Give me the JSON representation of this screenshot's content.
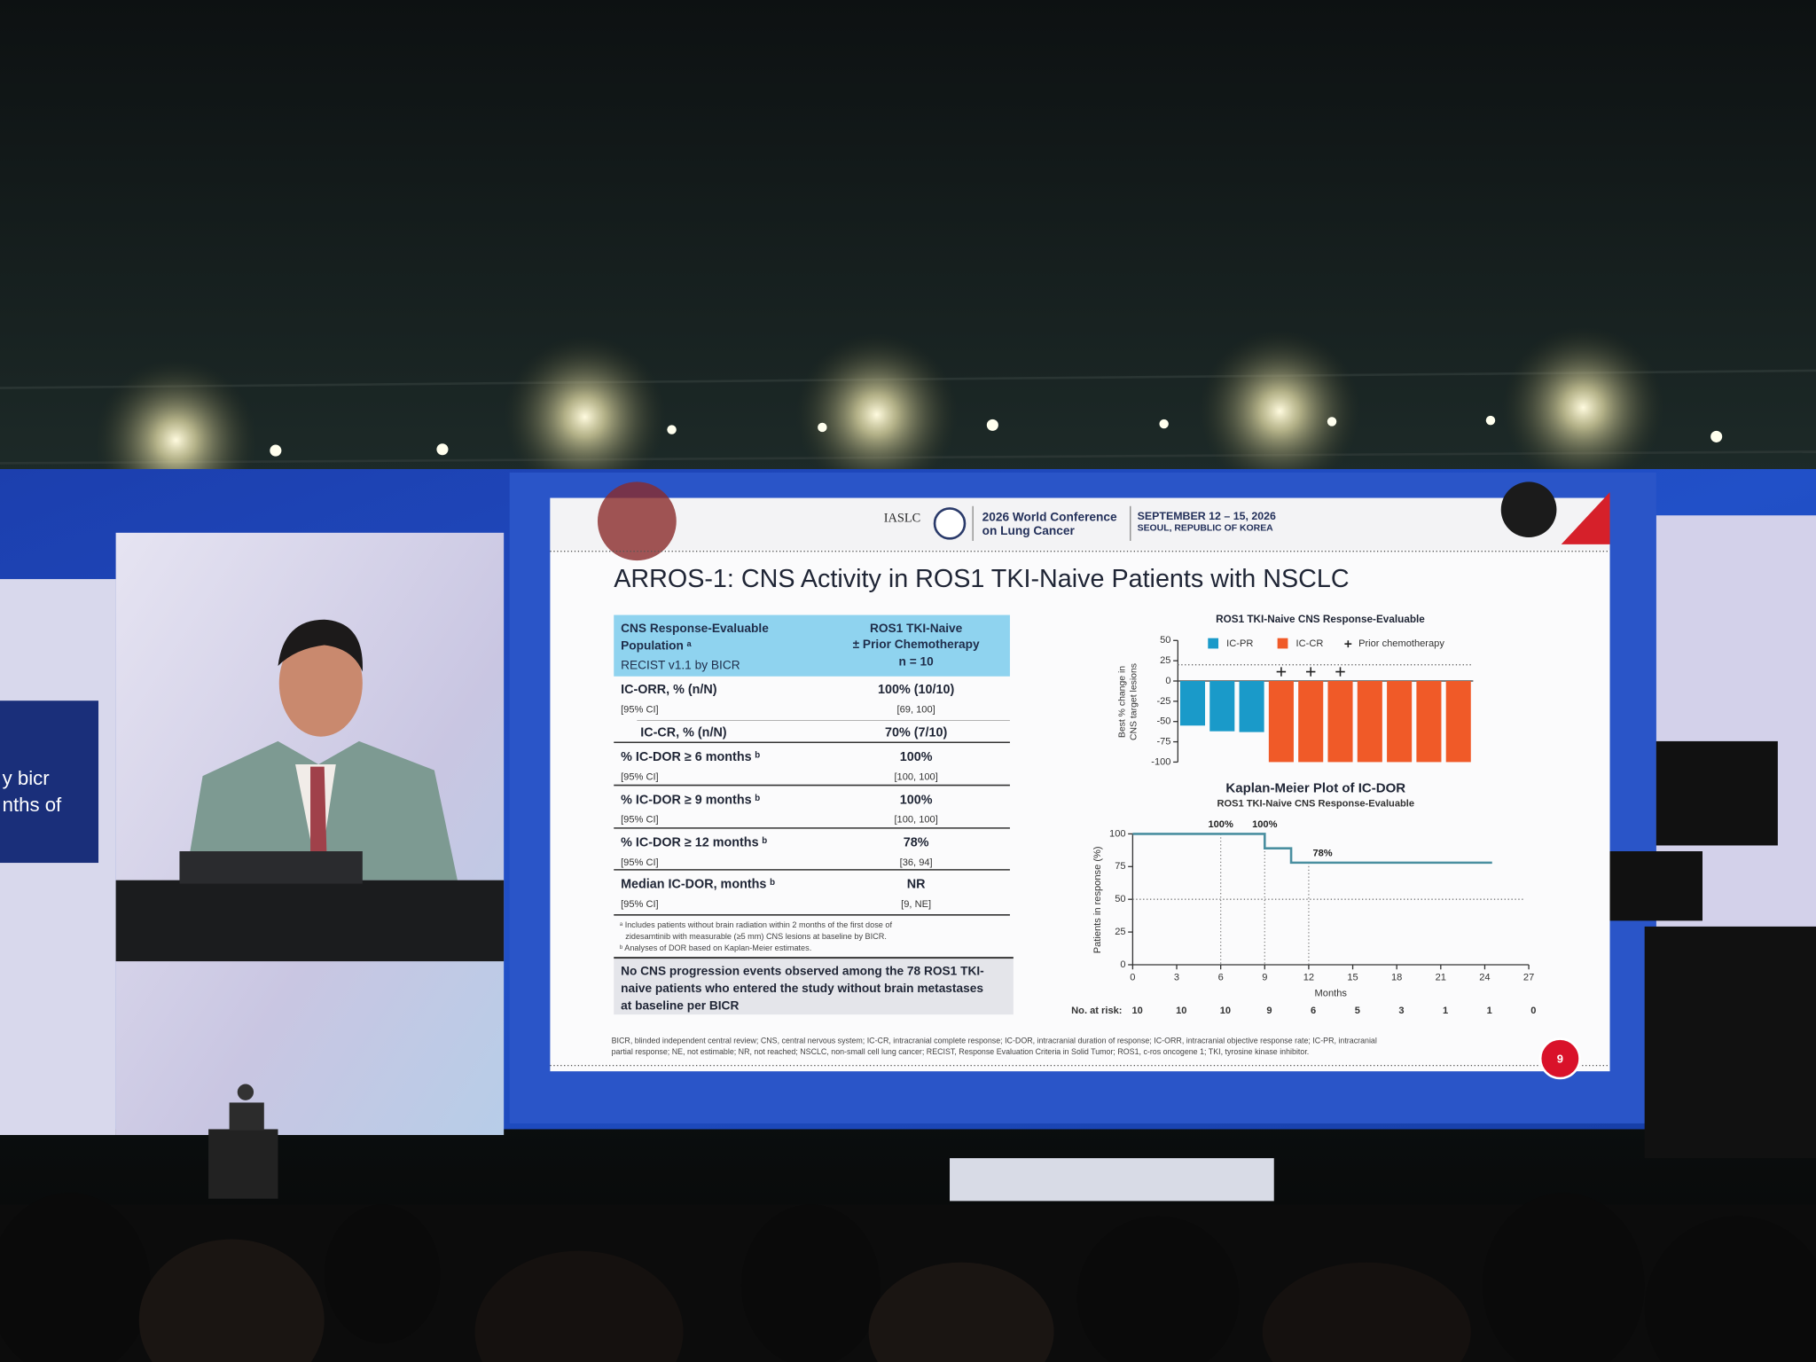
{
  "left_screen": {
    "caption_lines": [
      "y bicr",
      "nths of"
    ]
  },
  "slide": {
    "header": {
      "society": "IASLC",
      "conference": [
        "2026 World Conference",
        "on Lung Cancer"
      ],
      "dates": "SEPTEMBER 12 – 15, 2026",
      "location": "SEOUL, REPUBLIC OF KOREA"
    },
    "title": "ARROS-1: CNS Activity in ROS1 TKI-Naive Patients with NSCLC",
    "table": {
      "header_left": [
        "CNS Response-Evaluable",
        "Population ᵃ",
        "RECIST v1.1 by BICR"
      ],
      "header_right": [
        "ROS1 TKI-Naive",
        "± Prior Chemotherapy",
        "n = 10"
      ],
      "rows": [
        {
          "label": "IC-ORR, % (n/N)",
          "sublabel": "[95% CI]",
          "value": "100% (10/10)",
          "ci": "[69, 100]"
        },
        {
          "label": "IC-CR, % (n/N)",
          "value": "70% (7/10)"
        },
        {
          "label": "% IC-DOR ≥ 6 months ᵇ",
          "sublabel": "[95% CI]",
          "value": "100%",
          "ci": "[100, 100]"
        },
        {
          "label": "% IC-DOR ≥ 9 months ᵇ",
          "sublabel": "[95% CI]",
          "value": "100%",
          "ci": "[100, 100]"
        },
        {
          "label": "% IC-DOR ≥ 12 months ᵇ",
          "sublabel": "[95% CI]",
          "value": "78%",
          "ci": "[36, 94]"
        },
        {
          "label": "Median IC-DOR, months ᵇ",
          "sublabel": "[95% CI]",
          "value": "NR",
          "ci": "[9, NE]"
        }
      ]
    },
    "footnotes": [
      "ᵃ Includes patients without brain radiation within 2 months of the first dose of",
      "zidesamtinib with measurable (≥5 mm) CNS lesions at baseline by BICR.",
      "ᵇ Analyses of DOR based on Kaplan-Meier estimates."
    ],
    "callout": [
      "No CNS progression events observed among the 78 ROS1 TKI-",
      "naive patients who entered the study without brain metastases",
      "at baseline per BICR"
    ],
    "waterfall": {
      "type": "bar",
      "title": "ROS1 TKI-Naive CNS Response-Evaluable",
      "y_label": [
        "Best % change in",
        "CNS target lesions"
      ],
      "series": [
        {
          "name": "IC-PR",
          "color": "#1a9ac9",
          "values": [
            -55,
            -62,
            -63,
            null,
            null,
            null,
            null,
            null,
            null,
            null
          ]
        },
        {
          "name": "IC-CR",
          "color": "#f05a28",
          "values": [
            null,
            null,
            null,
            -100,
            -100,
            -100,
            -100,
            -100,
            -100,
            -100
          ]
        }
      ],
      "marker_name": "Prior chemotherapy",
      "prior_chemotherapy": [
        false,
        false,
        false,
        true,
        true,
        true,
        false,
        false,
        false,
        false
      ],
      "reference_line": 20,
      "ylim": [
        -100,
        50
      ],
      "yticks": [
        50,
        25,
        0,
        -25,
        -50,
        -75,
        -100
      ]
    },
    "km_plot": {
      "type": "line",
      "title": "Kaplan-Meier Plot of IC-DOR",
      "subtitle": "ROS1 TKI-Naive CNS Response-Evaluable",
      "x_label": "Months",
      "y_label": "Patients in response (%)",
      "color": "#4a8fa0",
      "x": [
        0,
        9,
        9,
        10.8,
        10.8,
        24.5
      ],
      "values": [
        100,
        100,
        89,
        89,
        78,
        78
      ],
      "annotations": [
        {
          "x": 6,
          "y": 100,
          "label": "100%"
        },
        {
          "x": 9,
          "y": 100,
          "label": "100%"
        },
        {
          "x": 12,
          "y": 78,
          "label": "78%"
        }
      ],
      "reference_line": 50,
      "xlim": [
        0,
        27
      ],
      "xticks": [
        0,
        3,
        6,
        9,
        12,
        15,
        18,
        21,
        24,
        27
      ],
      "ylim": [
        0,
        100
      ],
      "yticks": [
        0,
        25,
        50,
        75,
        100
      ],
      "risk_label": "No. at risk:",
      "at_risk": [
        10,
        10,
        10,
        9,
        6,
        5,
        3,
        1,
        1,
        0
      ]
    },
    "abbreviations": [
      "BICR, blinded independent central review; CNS, central nervous system; IC-CR, intracranial complete response; IC-DOR, intracranial duration of response; IC-ORR, intracranial objective response rate; IC-PR, intracranial",
      "partial response; NE, not estimable; NR, not reached; NSCLC, non-small cell lung cancer; RECIST, Response Evaluation Criteria in Solid Tumor; ROS1, c-ros oncogene 1; TKI, tyrosine kinase inhibitor."
    ],
    "page_number": "9"
  }
}
